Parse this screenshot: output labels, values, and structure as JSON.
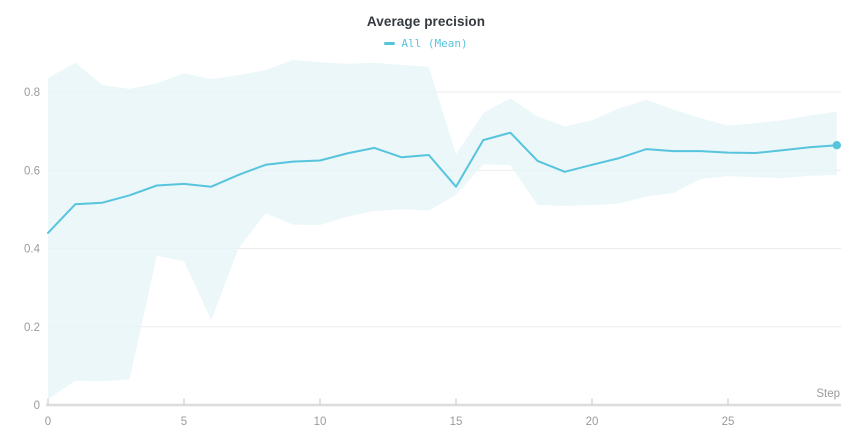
{
  "header": {
    "title": "Average precision"
  },
  "legend": {
    "label": "All (Mean)",
    "swatch_color": "#57c4de"
  },
  "colors": {
    "line": "#57c4de",
    "band": "#e7f5f9",
    "gridline": "#ebebeb",
    "axis_line": "#dcdcdc",
    "tick_mark": "#d9d9d9",
    "tick_text": "#9b9b9b",
    "title_text": "#343a40"
  },
  "chart_data": {
    "type": "line",
    "title": "Average precision",
    "xlabel": "Step",
    "ylabel": "",
    "x_ticks": [
      0,
      5,
      10,
      15,
      20,
      25
    ],
    "y_ticks": [
      0,
      0.2,
      0.4,
      0.6,
      0.8
    ],
    "xlim": [
      0,
      29
    ],
    "ylim": [
      0,
      0.8
    ],
    "grid": true,
    "legend_position": "top-center",
    "series": [
      {
        "name": "All (Mean)",
        "x": [
          0,
          1,
          2,
          3,
          4,
          5,
          6,
          7,
          8,
          9,
          10,
          11,
          12,
          13,
          14,
          15,
          16,
          17,
          18,
          19,
          20,
          21,
          22,
          23,
          24,
          25,
          26,
          27,
          28,
          29
        ],
        "y": [
          0.44,
          0.513,
          0.517,
          0.536,
          0.561,
          0.565,
          0.558,
          0.588,
          0.614,
          0.622,
          0.625,
          0.643,
          0.657,
          0.633,
          0.639,
          0.558,
          0.677,
          0.696,
          0.624,
          0.596,
          0.614,
          0.631,
          0.654,
          0.649,
          0.649,
          0.645,
          0.644,
          0.651,
          0.659,
          0.664
        ],
        "band_upper": [
          0.836,
          0.875,
          0.818,
          0.808,
          0.822,
          0.848,
          0.833,
          0.843,
          0.856,
          0.882,
          0.876,
          0.872,
          0.875,
          0.869,
          0.865,
          0.64,
          0.746,
          0.784,
          0.737,
          0.712,
          0.728,
          0.758,
          0.78,
          0.755,
          0.733,
          0.714,
          0.72,
          0.728,
          0.74,
          0.75
        ],
        "band_lower": [
          0.015,
          0.062,
          0.06,
          0.066,
          0.381,
          0.368,
          0.217,
          0.4,
          0.49,
          0.461,
          0.46,
          0.481,
          0.496,
          0.5,
          0.497,
          0.537,
          0.615,
          0.613,
          0.511,
          0.509,
          0.511,
          0.515,
          0.533,
          0.542,
          0.578,
          0.585,
          0.582,
          0.58,
          0.586,
          0.588
        ],
        "end_marker": true
      }
    ]
  }
}
